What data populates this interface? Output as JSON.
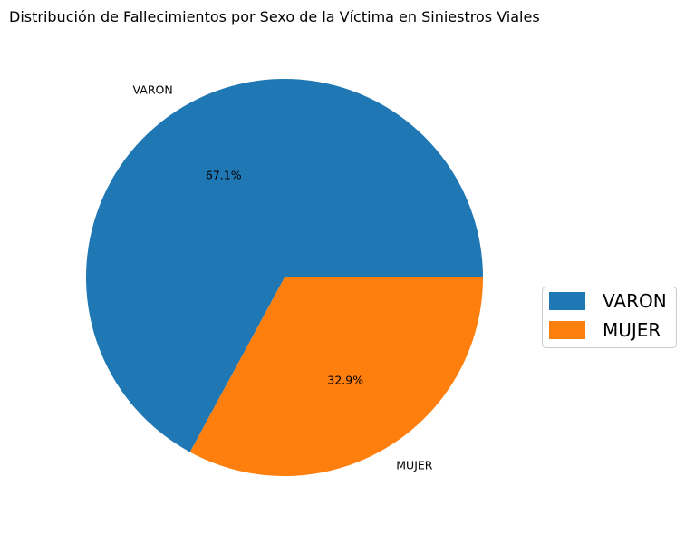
{
  "chart_data": {
    "type": "pie",
    "title": "Distribución de Fallecimientos por Sexo de la Víctima en Siniestros Viales",
    "slices": [
      {
        "label": "VARON",
        "value": 67.1,
        "pct_label": "67.1%",
        "color": "#1f77b4"
      },
      {
        "label": "MUJER",
        "value": 32.9,
        "pct_label": "32.9%",
        "color": "#ff7f0e"
      }
    ],
    "start_angle_deg": 0,
    "direction": "counterclockwise",
    "legend": {
      "placement": "right",
      "entries": [
        "VARON",
        "MUJER"
      ]
    }
  }
}
